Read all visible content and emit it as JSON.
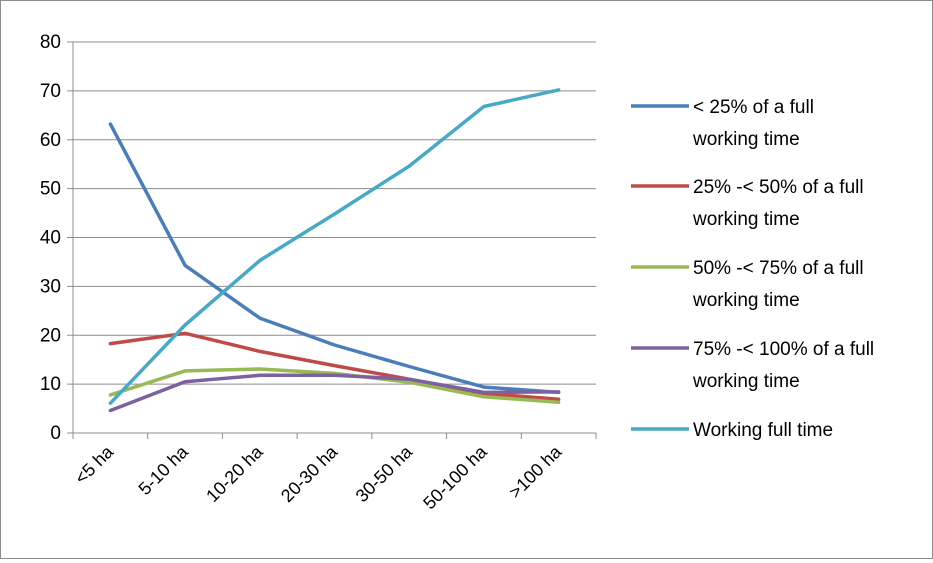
{
  "chart_data": {
    "type": "line",
    "categories": [
      "<5 ha",
      "5-10 ha",
      "10-20 ha",
      "20-30 ha",
      "30-50 ha",
      "50-100 ha",
      ">100 ha"
    ],
    "ylim": [
      0,
      80
    ],
    "yticks": [
      "0",
      "10",
      "20",
      "30",
      "40",
      "50",
      "60",
      "70",
      "80"
    ],
    "grid": true,
    "legend_position": "right",
    "series": [
      {
        "name_lines": [
          "< 25% of a full",
          "working time"
        ],
        "color": "#4a7ebb",
        "values": [
          63.2,
          34.3,
          23.5,
          18.0,
          13.6,
          9.4,
          8.3
        ]
      },
      {
        "name_lines": [
          "25% -< 50% of a full",
          "working time"
        ],
        "color": "#be4b48",
        "values": [
          18.3,
          20.4,
          16.7,
          13.8,
          11.0,
          8.1,
          6.9
        ]
      },
      {
        "name_lines": [
          "50% -< 75% of a full",
          "working time"
        ],
        "color": "#98b954",
        "values": [
          7.8,
          12.7,
          13.1,
          12.2,
          10.4,
          7.4,
          6.3
        ]
      },
      {
        "name_lines": [
          "75% -< 100% of a full",
          "working time"
        ],
        "color": "#7d60a0",
        "values": [
          4.6,
          10.5,
          11.8,
          11.8,
          11.0,
          8.3,
          8.4
        ]
      },
      {
        "name_lines": [
          "Working full time"
        ],
        "color": "#46aac5",
        "values": [
          6.1,
          22.1,
          35.3,
          44.8,
          54.6,
          66.8,
          70.2
        ]
      }
    ]
  }
}
